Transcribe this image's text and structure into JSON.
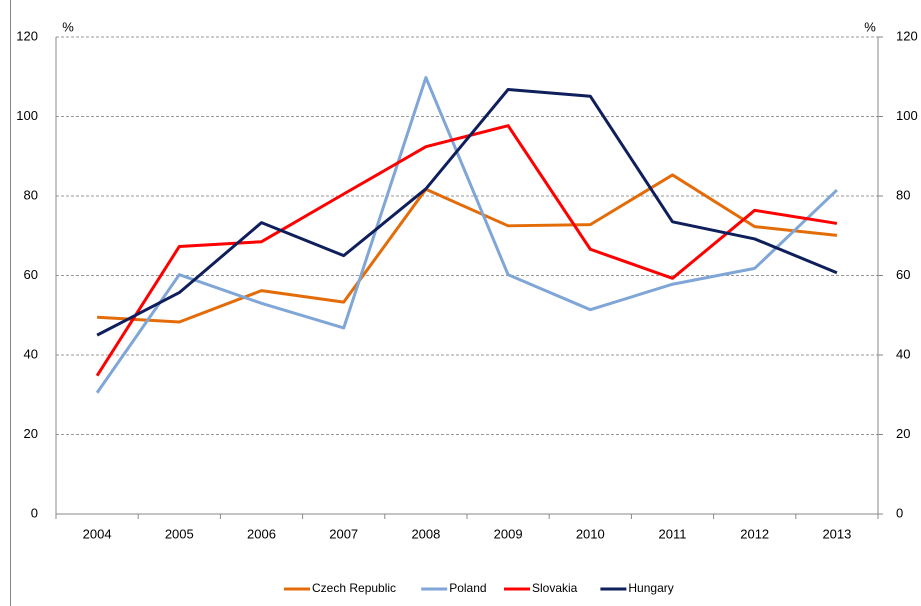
{
  "chart_data": {
    "type": "line",
    "ylabel": "%",
    "y2label": "%",
    "categories": [
      "2004",
      "2005",
      "2006",
      "2007",
      "2008",
      "2009",
      "2010",
      "2011",
      "2012",
      "2013"
    ],
    "series": [
      {
        "name": "Czech Republic",
        "color": "#e36c09",
        "values": [
          49.5,
          48.3,
          56.2,
          53.3,
          81.7,
          72.5,
          72.8,
          85.3,
          72.3,
          70.1
        ]
      },
      {
        "name": "Poland",
        "color": "#7fa6d6",
        "values": [
          30.5,
          60.2,
          53.0,
          46.8,
          109.8,
          60.2,
          51.4,
          57.8,
          61.8,
          81.5
        ]
      },
      {
        "name": "Slovakia",
        "color": "#ff0000",
        "values": [
          34.8,
          67.3,
          68.5,
          80.5,
          92.4,
          97.7,
          66.6,
          59.3,
          76.4,
          73.1
        ]
      },
      {
        "name": "Hungary",
        "color": "#0f1f5c",
        "values": [
          45.0,
          55.7,
          73.3,
          65.0,
          81.8,
          106.8,
          105.1,
          73.5,
          69.2,
          60.7
        ]
      }
    ],
    "ylim": [
      0,
      120
    ],
    "yticks": [
      0,
      20,
      40,
      60,
      80,
      100,
      120
    ],
    "y2lim": [
      0,
      120
    ],
    "y2ticks": [
      0,
      20,
      40,
      60,
      80,
      100,
      120
    ],
    "grid": true,
    "legend": "bottom"
  }
}
